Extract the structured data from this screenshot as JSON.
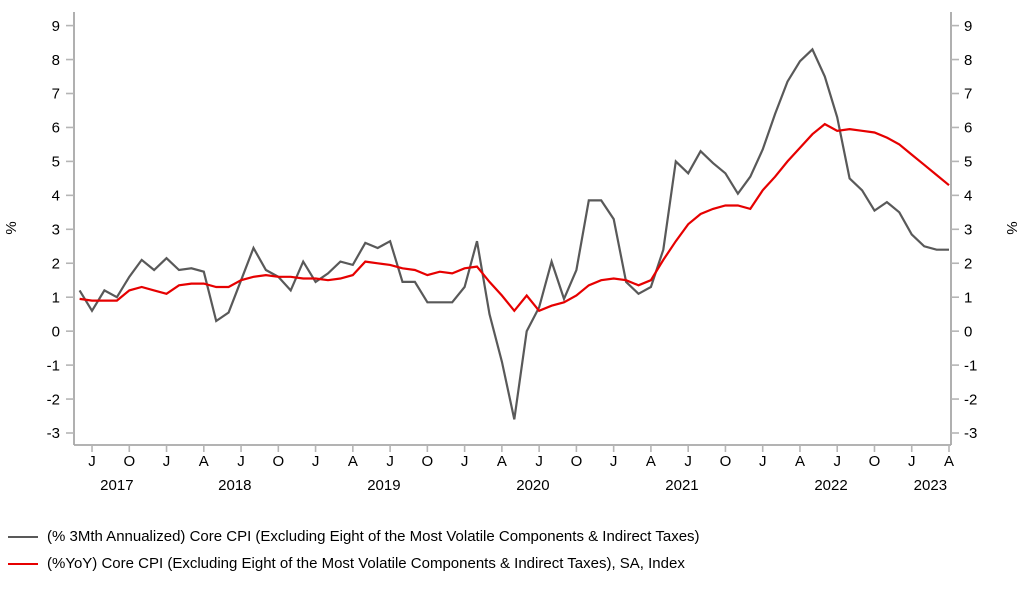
{
  "chart_data": {
    "type": "line",
    "title": "",
    "y": {
      "min": -3,
      "max": 9,
      "step": 1,
      "unit_left": "%",
      "unit_right": "%",
      "grid": false
    },
    "x": {
      "start_year": 2017,
      "start_month": 6,
      "end_year": 2023,
      "end_month": 4,
      "labeled_months": {
        "1": "J",
        "4": "A",
        "7": "J",
        "10": "O"
      },
      "year_labels": [
        "2017",
        "2018",
        "2019",
        "2020",
        "2021",
        "2022",
        "2023"
      ]
    },
    "legend_position": "bottom-left",
    "series": [
      {
        "name": "(% 3Mth Annualized) Core CPI (Excluding Eight of the Most Volatile Components & Indirect Taxes)",
        "color": "#595959",
        "values": [
          1.2,
          0.6,
          1.2,
          1.0,
          1.6,
          2.1,
          1.8,
          2.15,
          1.8,
          1.85,
          1.75,
          0.3,
          0.55,
          1.5,
          2.45,
          1.8,
          1.6,
          1.2,
          2.05,
          1.45,
          1.7,
          2.05,
          1.95,
          2.6,
          2.45,
          2.65,
          1.45,
          1.45,
          0.85,
          0.85,
          0.85,
          1.3,
          2.65,
          0.5,
          -0.9,
          -2.6,
          0.0,
          0.7,
          2.05,
          0.95,
          1.8,
          3.85,
          3.85,
          3.3,
          1.45,
          1.1,
          1.3,
          2.4,
          5.0,
          4.65,
          5.3,
          4.95,
          4.65,
          4.05,
          4.55,
          5.35,
          6.4,
          7.35,
          7.95,
          8.3,
          7.5,
          6.3,
          4.5,
          4.15,
          3.55,
          3.8,
          3.5,
          2.85,
          2.5,
          2.4,
          2.4
        ]
      },
      {
        "name": "(%YoY) Core CPI (Excluding Eight of the Most Volatile Components & Indirect Taxes), SA, Index",
        "color": "#e60000",
        "values": [
          0.95,
          0.9,
          0.9,
          0.9,
          1.2,
          1.3,
          1.2,
          1.1,
          1.35,
          1.4,
          1.4,
          1.3,
          1.3,
          1.5,
          1.6,
          1.65,
          1.6,
          1.6,
          1.55,
          1.55,
          1.5,
          1.55,
          1.65,
          2.05,
          2.0,
          1.95,
          1.85,
          1.8,
          1.65,
          1.75,
          1.7,
          1.85,
          1.9,
          1.45,
          1.05,
          0.6,
          1.05,
          0.6,
          0.75,
          0.85,
          1.05,
          1.35,
          1.5,
          1.55,
          1.5,
          1.35,
          1.5,
          2.1,
          2.65,
          3.15,
          3.45,
          3.6,
          3.7,
          3.7,
          3.6,
          4.15,
          4.55,
          5.0,
          5.4,
          5.8,
          6.1,
          5.9,
          5.95,
          5.9,
          5.85,
          5.7,
          5.5,
          5.2,
          4.9,
          4.6,
          4.3
        ]
      }
    ]
  }
}
